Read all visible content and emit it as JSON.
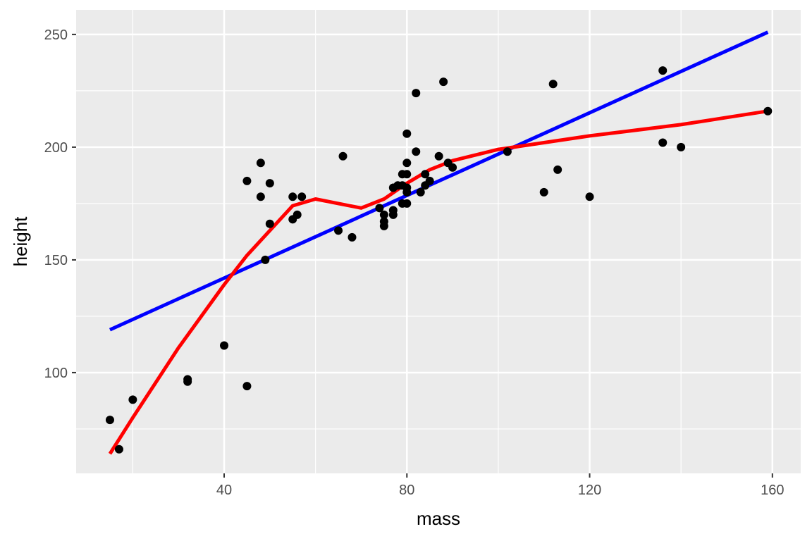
{
  "chart_data": {
    "type": "scatter",
    "xlabel": "mass",
    "ylabel": "height",
    "xlim": [
      7.6,
      166.2
    ],
    "ylim": [
      55.3,
      260.9
    ],
    "xticks": [
      40,
      80,
      120,
      160
    ],
    "yticks": [
      100,
      150,
      200,
      250
    ],
    "xminor": [
      20,
      60,
      100,
      140
    ],
    "yminor": [
      75,
      125,
      175,
      225
    ],
    "grid": true,
    "points": [
      [
        15,
        79
      ],
      [
        17,
        66
      ],
      [
        20,
        88
      ],
      [
        32,
        97
      ],
      [
        32,
        96
      ],
      [
        40,
        112
      ],
      [
        45,
        94
      ],
      [
        45,
        185
      ],
      [
        48,
        193
      ],
      [
        48,
        178
      ],
      [
        49,
        150
      ],
      [
        50,
        184
      ],
      [
        50,
        166
      ],
      [
        55,
        178
      ],
      [
        55,
        168
      ],
      [
        56,
        170
      ],
      [
        57,
        178
      ],
      [
        65,
        163
      ],
      [
        66,
        196
      ],
      [
        68,
        160
      ],
      [
        75,
        165
      ],
      [
        75,
        167
      ],
      [
        75,
        170
      ],
      [
        74,
        173
      ],
      [
        77,
        172
      ],
      [
        77,
        170
      ],
      [
        77,
        182
      ],
      [
        78,
        183
      ],
      [
        79,
        183
      ],
      [
        79,
        188
      ],
      [
        79,
        175
      ],
      [
        80,
        206
      ],
      [
        80,
        193
      ],
      [
        80,
        188
      ],
      [
        80,
        182
      ],
      [
        80,
        180
      ],
      [
        80,
        175
      ],
      [
        82,
        198
      ],
      [
        82,
        224
      ],
      [
        83,
        180
      ],
      [
        84,
        188
      ],
      [
        84,
        183
      ],
      [
        85,
        185
      ],
      [
        87,
        196
      ],
      [
        88,
        229
      ],
      [
        89,
        193
      ],
      [
        90,
        191
      ],
      [
        102,
        198
      ],
      [
        110,
        180
      ],
      [
        112,
        228
      ],
      [
        113,
        190
      ],
      [
        120,
        178
      ],
      [
        136,
        234
      ],
      [
        136,
        202
      ],
      [
        140,
        200
      ],
      [
        159,
        216
      ]
    ],
    "series": [
      {
        "type": "line",
        "color": "#0000FF",
        "x": [
          15,
          159
        ],
        "y": [
          119,
          251
        ]
      },
      {
        "type": "line",
        "color": "#FF0000",
        "x": [
          15,
          20,
          30,
          40,
          45,
          50,
          55,
          60,
          65,
          70,
          75,
          80,
          85,
          90,
          100,
          110,
          120,
          140,
          159
        ],
        "y": [
          64,
          80,
          111,
          139,
          152,
          163,
          174,
          177,
          175,
          173,
          177,
          184,
          190,
          194,
          199,
          202,
          205,
          210,
          216
        ]
      }
    ],
    "point_color": "#000000",
    "panel_color": "#EBEBEB"
  }
}
